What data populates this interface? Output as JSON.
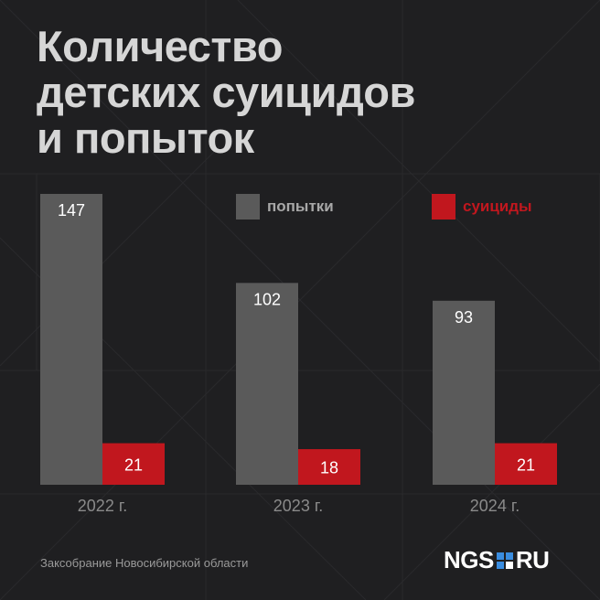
{
  "title_lines": [
    "Количество",
    "детских суицидов",
    "и попыток"
  ],
  "legend": [
    {
      "label": "попытки",
      "color": "#5a5a5a",
      "text_color": "#a8a8a8"
    },
    {
      "label": "суициды",
      "color": "#c1171e",
      "text_color": "#c1171e"
    }
  ],
  "source": "Заксобрание Новосибирской области",
  "logo": {
    "left": "NGS",
    "right": "RU"
  },
  "chart_data": {
    "type": "bar",
    "title": "Количество детских суицидов и попыток",
    "categories": [
      "2022 г.",
      "2023 г.",
      "2024 г."
    ],
    "series": [
      {
        "name": "попытки",
        "values": [
          147,
          102,
          93
        ],
        "color": "#5a5a5a"
      },
      {
        "name": "суициды",
        "values": [
          21,
          18,
          21
        ],
        "color": "#c1171e"
      }
    ],
    "ylim": [
      0,
      147
    ],
    "grid": false,
    "legend_position": "top-right"
  }
}
